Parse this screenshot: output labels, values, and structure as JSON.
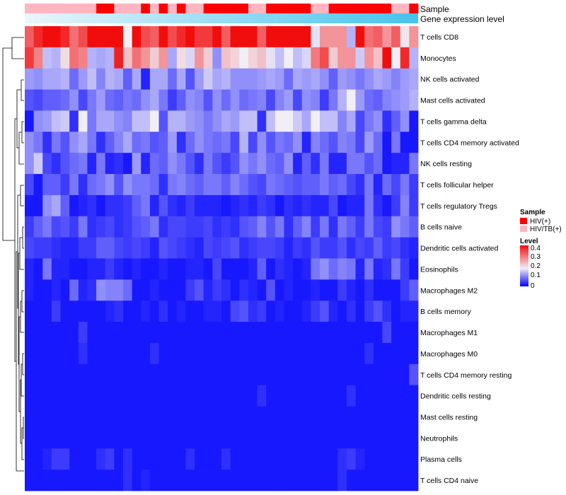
{
  "chart_data": {
    "type": "heatmap",
    "title": "",
    "rows": [
      "T cells CD8",
      "Monocytes",
      "NK cells activated",
      "Mast cells activated",
      "T cells gamma delta",
      "T cells CD4 memory activated",
      "NK cells resting",
      "T cells follicular helper",
      "T cells regulatory  Tregs",
      "B cells naive",
      "Dendritic cells activated",
      "Eosinophils",
      "Macrophages M2",
      "B cells memory",
      "Macrophages M1",
      "Macrophages M0",
      "T cells CD4 memory resting",
      "Dendritic cells resting",
      "Mast cells resting",
      "Neutrophils",
      "Plasma cells",
      "T cells CD4 naive"
    ],
    "n_columns": 44,
    "color_scale": {
      "min": 0,
      "max": 0.45,
      "low_color": "#0000ff",
      "mid_color": "#f2eef6",
      "mid_value": 0.2,
      "high_color": "#f20d0d"
    },
    "values": [
      [
        0.36,
        0.42,
        0.45,
        0.45,
        0.42,
        0.34,
        0.38,
        0.45,
        0.45,
        0.45,
        0.45,
        0.2,
        0.45,
        0.38,
        0.36,
        0.45,
        0.38,
        0.42,
        0.45,
        0.4,
        0.4,
        0.45,
        0.36,
        0.45,
        0.45,
        0.45,
        0.36,
        0.45,
        0.45,
        0.45,
        0.45,
        0.45,
        0.19,
        0.3,
        0.3,
        0.3,
        0.15,
        0.45,
        0.34,
        0.36,
        0.3,
        0.36,
        0.21,
        0.3
      ],
      [
        0.4,
        0.32,
        0.16,
        0.15,
        0.22,
        0.34,
        0.32,
        0.15,
        0.14,
        0.15,
        0.43,
        0.25,
        0.34,
        0.3,
        0.24,
        0.3,
        0.14,
        0.22,
        0.18,
        0.3,
        0.24,
        0.12,
        0.25,
        0.23,
        0.2,
        0.23,
        0.25,
        0.19,
        0.16,
        0.2,
        0.16,
        0.18,
        0.33,
        0.38,
        0.24,
        0.3,
        0.3,
        0.17,
        0.3,
        0.25,
        0.45,
        0.2,
        0.42,
        0.15
      ],
      [
        0.13,
        0.12,
        0.14,
        0.14,
        0.15,
        0.09,
        0.13,
        0.16,
        0.11,
        0.15,
        0.14,
        0.08,
        0.14,
        0.03,
        0.14,
        0.14,
        0.09,
        0.14,
        0.07,
        0.13,
        0.17,
        0.14,
        0.15,
        0.12,
        0.12,
        0.12,
        0.13,
        0.14,
        0.13,
        0.09,
        0.14,
        0.13,
        0.14,
        0.12,
        0.08,
        0.13,
        0.12,
        0.1,
        0.12,
        0.14,
        0.13,
        0.11,
        0.13,
        0.14
      ],
      [
        0.07,
        0.06,
        0.08,
        0.08,
        0.09,
        0.12,
        0.06,
        0.1,
        0.13,
        0.09,
        0.08,
        0.1,
        0.09,
        0.12,
        0.14,
        0.1,
        0.05,
        0.08,
        0.12,
        0.11,
        0.07,
        0.12,
        0.09,
        0.12,
        0.09,
        0.1,
        0.11,
        0.06,
        0.11,
        0.13,
        0.06,
        0.12,
        0.11,
        0.05,
        0.1,
        0.15,
        0.2,
        0.13,
        0.09,
        0.08,
        0.11,
        0.12,
        0.13,
        0.15
      ],
      [
        0.02,
        0.12,
        0.13,
        0.16,
        0.17,
        0.04,
        0.2,
        0.1,
        0.14,
        0.14,
        0.12,
        0.11,
        0.16,
        0.16,
        0.2,
        0.07,
        0.15,
        0.15,
        0.13,
        0.12,
        0.1,
        0.12,
        0.14,
        0.13,
        0.16,
        0.16,
        0.04,
        0.16,
        0.2,
        0.2,
        0.17,
        0.14,
        0.2,
        0.16,
        0.16,
        0.11,
        0.14,
        0.06,
        0.1,
        0.12,
        0.04,
        0.08,
        0.12,
        0.02
      ],
      [
        0.12,
        0.1,
        0.04,
        0.1,
        0.07,
        0.12,
        0.14,
        0.1,
        0.04,
        0.08,
        0.11,
        0.14,
        0.09,
        0.1,
        0.07,
        0.08,
        0.13,
        0.04,
        0.09,
        0.12,
        0.1,
        0.09,
        0.1,
        0.06,
        0.15,
        0.06,
        0.12,
        0.07,
        0.1,
        0.09,
        0.12,
        0.03,
        0.11,
        0.09,
        0.07,
        0.11,
        0.1,
        0.06,
        0.13,
        0.09,
        0.02,
        0.1,
        0.02,
        0.02
      ],
      [
        0.12,
        0.17,
        0.06,
        0.04,
        0.07,
        0.09,
        0.1,
        0.03,
        0.1,
        0.03,
        0.04,
        0.02,
        0.13,
        0.03,
        0.09,
        0.08,
        0.12,
        0.1,
        0.07,
        0.04,
        0.1,
        0.07,
        0.05,
        0.07,
        0.12,
        0.1,
        0.12,
        0.09,
        0.08,
        0.12,
        0.03,
        0.08,
        0.04,
        0.1,
        0.03,
        0.03,
        0.1,
        0.1,
        0.07,
        0.09,
        0.02,
        0.03,
        0.03,
        0.1
      ],
      [
        0.06,
        0.02,
        0.08,
        0.08,
        0.05,
        0.1,
        0.04,
        0.09,
        0.1,
        0.12,
        0.07,
        0.12,
        0.1,
        0.1,
        0.09,
        0.04,
        0.1,
        0.11,
        0.09,
        0.08,
        0.1,
        0.1,
        0.08,
        0.11,
        0.09,
        0.07,
        0.06,
        0.1,
        0.09,
        0.08,
        0.07,
        0.08,
        0.08,
        0.1,
        0.08,
        0.09,
        0.06,
        0.04,
        0.1,
        0.03,
        0.09,
        0.06,
        0.1,
        0.05
      ],
      [
        0.02,
        0.02,
        0.12,
        0.14,
        0.08,
        0.02,
        0.03,
        0.04,
        0.02,
        0.04,
        0.04,
        0.05,
        0.08,
        0.1,
        0.03,
        0.07,
        0.04,
        0.03,
        0.05,
        0.03,
        0.03,
        0.03,
        0.02,
        0.03,
        0.04,
        0.03,
        0.05,
        0.04,
        0.02,
        0.04,
        0.03,
        0.04,
        0.03,
        0.03,
        0.06,
        0.02,
        0.03,
        0.03,
        0.1,
        0.04,
        0.02,
        0.05,
        0.11,
        0.05
      ],
      [
        0.05,
        0.08,
        0.1,
        0.06,
        0.07,
        0.05,
        0.1,
        0.04,
        0.05,
        0.06,
        0.04,
        0.05,
        0.07,
        0.08,
        0.1,
        0.04,
        0.06,
        0.06,
        0.05,
        0.05,
        0.06,
        0.04,
        0.05,
        0.04,
        0.07,
        0.08,
        0.11,
        0.07,
        0.1,
        0.04,
        0.08,
        0.11,
        0.05,
        0.1,
        0.04,
        0.1,
        0.08,
        0.05,
        0.1,
        0.06,
        0.05,
        0.12,
        0.1,
        0.08
      ],
      [
        0.06,
        0.05,
        0.05,
        0.04,
        0.03,
        0.03,
        0.05,
        0.05,
        0.08,
        0.08,
        0.06,
        0.05,
        0.06,
        0.05,
        0.03,
        0.07,
        0.06,
        0.05,
        0.04,
        0.03,
        0.06,
        0.05,
        0.06,
        0.07,
        0.04,
        0.05,
        0.06,
        0.06,
        0.05,
        0.03,
        0.05,
        0.04,
        0.07,
        0.05,
        0.05,
        0.07,
        0.04,
        0.06,
        0.05,
        0.08,
        0.05,
        0.06,
        0.04,
        0.03
      ],
      [
        0.03,
        0.02,
        0.1,
        0.03,
        0.03,
        0.02,
        0.02,
        0.03,
        0.03,
        0.05,
        0.03,
        0.02,
        0.03,
        0.02,
        0.02,
        0.03,
        0.02,
        0.02,
        0.03,
        0.03,
        0.02,
        0.06,
        0.02,
        0.02,
        0.02,
        0.03,
        0.08,
        0.02,
        0.04,
        0.03,
        0.02,
        0.03,
        0.1,
        0.12,
        0.09,
        0.11,
        0.1,
        0.03,
        0.1,
        0.03,
        0.04,
        0.1,
        0.05,
        0.02
      ],
      [
        0.03,
        0.02,
        0.02,
        0.03,
        0.02,
        0.09,
        0.03,
        0.04,
        0.12,
        0.11,
        0.11,
        0.09,
        0.02,
        0.02,
        0.03,
        0.02,
        0.02,
        0.02,
        0.05,
        0.07,
        0.03,
        0.05,
        0.04,
        0.02,
        0.04,
        0.03,
        0.02,
        0.07,
        0.02,
        0.03,
        0.02,
        0.02,
        0.03,
        0.02,
        0.02,
        0.05,
        0.03,
        0.02,
        0.04,
        0.02,
        0.02,
        0.02,
        0.05,
        0.08
      ],
      [
        0.02,
        0.02,
        0.02,
        0.05,
        0.02,
        0.02,
        0.02,
        0.02,
        0.02,
        0.03,
        0.04,
        0.02,
        0.02,
        0.03,
        0.02,
        0.04,
        0.02,
        0.03,
        0.02,
        0.02,
        0.03,
        0.03,
        0.02,
        0.06,
        0.07,
        0.04,
        0.05,
        0.02,
        0.03,
        0.02,
        0.02,
        0.03,
        0.05,
        0.07,
        0.03,
        0.02,
        0.04,
        0.02,
        0.05,
        0.07,
        0.04,
        0.02,
        0.03,
        0.03
      ],
      [
        0.02,
        0.02,
        0.02,
        0.02,
        0.02,
        0.02,
        0.05,
        0.02,
        0.02,
        0.02,
        0.02,
        0.02,
        0.02,
        0.02,
        0.02,
        0.02,
        0.02,
        0.02,
        0.02,
        0.02,
        0.02,
        0.02,
        0.02,
        0.02,
        0.02,
        0.02,
        0.02,
        0.02,
        0.02,
        0.02,
        0.02,
        0.02,
        0.02,
        0.02,
        0.02,
        0.02,
        0.02,
        0.02,
        0.02,
        0.02,
        0.06,
        0.02,
        0.02,
        0.02
      ],
      [
        0.02,
        0.02,
        0.02,
        0.02,
        0.02,
        0.02,
        0.04,
        0.02,
        0.02,
        0.02,
        0.02,
        0.02,
        0.02,
        0.02,
        0.04,
        0.02,
        0.02,
        0.02,
        0.02,
        0.02,
        0.02,
        0.02,
        0.02,
        0.02,
        0.02,
        0.02,
        0.02,
        0.02,
        0.02,
        0.02,
        0.02,
        0.02,
        0.02,
        0.02,
        0.02,
        0.02,
        0.02,
        0.02,
        0.04,
        0.02,
        0.02,
        0.02,
        0.02,
        0.02
      ],
      [
        0.02,
        0.02,
        0.02,
        0.02,
        0.02,
        0.02,
        0.02,
        0.02,
        0.02,
        0.02,
        0.02,
        0.02,
        0.02,
        0.02,
        0.02,
        0.02,
        0.02,
        0.02,
        0.02,
        0.02,
        0.02,
        0.02,
        0.02,
        0.02,
        0.02,
        0.02,
        0.02,
        0.02,
        0.02,
        0.02,
        0.02,
        0.02,
        0.02,
        0.02,
        0.02,
        0.02,
        0.02,
        0.02,
        0.02,
        0.02,
        0.02,
        0.02,
        0.02,
        0.07
      ],
      [
        0.02,
        0.02,
        0.02,
        0.02,
        0.02,
        0.02,
        0.02,
        0.02,
        0.02,
        0.02,
        0.02,
        0.02,
        0.02,
        0.02,
        0.02,
        0.02,
        0.02,
        0.02,
        0.02,
        0.02,
        0.02,
        0.02,
        0.02,
        0.02,
        0.02,
        0.02,
        0.04,
        0.02,
        0.02,
        0.02,
        0.02,
        0.02,
        0.02,
        0.02,
        0.02,
        0.02,
        0.04,
        0.02,
        0.02,
        0.02,
        0.02,
        0.02,
        0.02,
        0.02
      ],
      [
        0.02,
        0.02,
        0.02,
        0.02,
        0.02,
        0.02,
        0.02,
        0.02,
        0.02,
        0.02,
        0.02,
        0.02,
        0.02,
        0.02,
        0.02,
        0.02,
        0.02,
        0.02,
        0.02,
        0.02,
        0.02,
        0.02,
        0.02,
        0.02,
        0.02,
        0.02,
        0.02,
        0.02,
        0.02,
        0.02,
        0.02,
        0.02,
        0.02,
        0.02,
        0.02,
        0.02,
        0.02,
        0.02,
        0.02,
        0.02,
        0.02,
        0.02,
        0.02,
        0.02
      ],
      [
        0.02,
        0.02,
        0.02,
        0.02,
        0.02,
        0.02,
        0.02,
        0.02,
        0.02,
        0.02,
        0.02,
        0.02,
        0.02,
        0.02,
        0.02,
        0.02,
        0.02,
        0.02,
        0.02,
        0.02,
        0.02,
        0.02,
        0.02,
        0.02,
        0.02,
        0.02,
        0.02,
        0.02,
        0.02,
        0.02,
        0.02,
        0.02,
        0.02,
        0.02,
        0.02,
        0.02,
        0.02,
        0.02,
        0.02,
        0.02,
        0.02,
        0.02,
        0.02,
        0.02
      ],
      [
        0.02,
        0.02,
        0.03,
        0.05,
        0.05,
        0.02,
        0.02,
        0.02,
        0.04,
        0.05,
        0.02,
        0.04,
        0.02,
        0.02,
        0.02,
        0.02,
        0.02,
        0.02,
        0.04,
        0.02,
        0.02,
        0.02,
        0.04,
        0.02,
        0.02,
        0.02,
        0.02,
        0.02,
        0.02,
        0.02,
        0.02,
        0.02,
        0.02,
        0.02,
        0.02,
        0.04,
        0.05,
        0.03,
        0.02,
        0.02,
        0.02,
        0.02,
        0.02,
        0.02
      ],
      [
        0.02,
        0.02,
        0.02,
        0.02,
        0.02,
        0.02,
        0.02,
        0.02,
        0.02,
        0.02,
        0.02,
        0.04,
        0.02,
        0.03,
        0.02,
        0.02,
        0.02,
        0.02,
        0.02,
        0.02,
        0.02,
        0.02,
        0.02,
        0.02,
        0.02,
        0.02,
        0.02,
        0.02,
        0.02,
        0.02,
        0.02,
        0.02,
        0.02,
        0.02,
        0.02,
        0.04,
        0.02,
        0.02,
        0.02,
        0.02,
        0.02,
        0.02,
        0.02,
        0.02
      ]
    ],
    "annotations": {
      "sample": {
        "label": "Sample",
        "values": [
          "HIV/TB(+)",
          "HIV/TB(+)",
          "HIV/TB(+)",
          "HIV/TB(+)",
          "HIV/TB(+)",
          "HIV/TB(+)",
          "HIV/TB(+)",
          "HIV/TB(+)",
          "HIV(+)",
          "HIV(+)",
          "HIV/TB(+)",
          "HIV/TB(+)",
          "HIV/TB(+)",
          "HIV(+)",
          "HIV/TB(+)",
          "HIV(+)",
          "HIV/TB(+)",
          "HIV(+)",
          "HIV/TB(+)",
          "HIV/TB(+)",
          "HIV(+)",
          "HIV(+)",
          "HIV(+)",
          "HIV(+)",
          "HIV(+)",
          "HIV/TB(+)",
          "HIV/TB(+)",
          "HIV(+)",
          "HIV(+)",
          "HIV(+)",
          "HIV(+)",
          "HIV(+)",
          "HIV/TB(+)",
          "HIV/TB(+)",
          "HIV(+)",
          "HIV(+)",
          "HIV(+)",
          "HIV(+)",
          "HIV(+)",
          "HIV(+)",
          "HIV(+)",
          "HIV/TB(+)",
          "HIV/TB(+)",
          "HIV(+)"
        ]
      },
      "gene_expression": {
        "label": "Gene expression level",
        "low_color": "#ebf6fb",
        "high_color": "#45c3ec"
      }
    },
    "legend": {
      "sample_title": "Sample",
      "sample_items": [
        {
          "label": "HIV(+)",
          "color": "#ff0000"
        },
        {
          "label": "HIV/TB(+)",
          "color": "#ffb6c1"
        }
      ],
      "level_title": "Level",
      "level_ticks": [
        "0.4",
        "0.3",
        "0.2",
        "0.1",
        "0"
      ]
    }
  }
}
